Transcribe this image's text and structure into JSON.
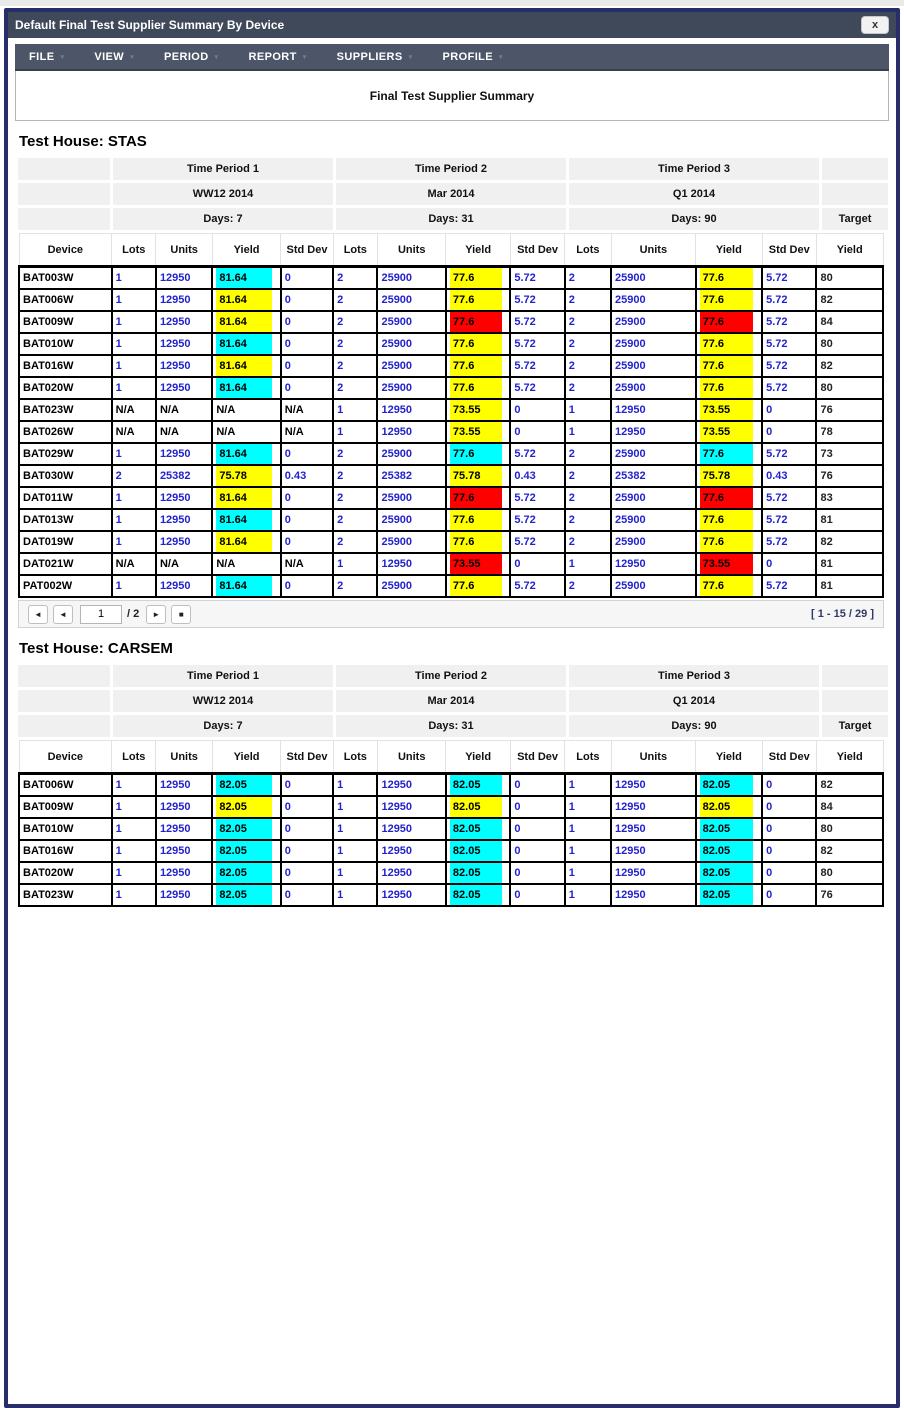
{
  "window": {
    "title": "Default Final Test Supplier Summary By Device",
    "close_label": "x"
  },
  "menu": {
    "items": [
      "FILE",
      "VIEW",
      "PERIOD",
      "REPORT",
      "SUPPLIERS",
      "PROFILE"
    ]
  },
  "report": {
    "title": "Final Test Supplier Summary"
  },
  "colors": {
    "cyan": "#00ffff",
    "yellow": "#ffff00",
    "red": "#ff0000",
    "number_text": "#2323cd",
    "menu_bar": "#4c5668",
    "title_bar": "#3f4959",
    "window_border": "#272e6a"
  },
  "table": {
    "columns": [
      "Device",
      "Lots",
      "Units",
      "Yield",
      "Std Dev",
      "Lots",
      "Units",
      "Yield",
      "Std Dev",
      "Lots",
      "Units",
      "Yield",
      "Std Dev",
      "Yield"
    ],
    "target_label": "Target"
  },
  "sections": [
    {
      "heading": "Test House: STAS",
      "periods": [
        {
          "name": "Time Period 1",
          "range": "WW12 2014",
          "days": "Days: 7"
        },
        {
          "name": "Time Period 2",
          "range": "Mar 2014",
          "days": "Days: 31"
        },
        {
          "name": "Time Period 3",
          "range": "Q1 2014",
          "days": "Days: 90"
        }
      ],
      "rows": [
        {
          "device": "BAT003W",
          "p": [
            [
              "1",
              "12950",
              "81.64",
              "cyan",
              "0"
            ],
            [
              "2",
              "25900",
              "77.6",
              "yellow",
              "5.72"
            ],
            [
              "2",
              "25900",
              "77.6",
              "yellow",
              "5.72"
            ]
          ],
          "target": "80"
        },
        {
          "device": "BAT006W",
          "p": [
            [
              "1",
              "12950",
              "81.64",
              "yellow",
              "0"
            ],
            [
              "2",
              "25900",
              "77.6",
              "yellow",
              "5.72"
            ],
            [
              "2",
              "25900",
              "77.6",
              "yellow",
              "5.72"
            ]
          ],
          "target": "82"
        },
        {
          "device": "BAT009W",
          "p": [
            [
              "1",
              "12950",
              "81.64",
              "yellow",
              "0"
            ],
            [
              "2",
              "25900",
              "77.6",
              "red",
              "5.72"
            ],
            [
              "2",
              "25900",
              "77.6",
              "red",
              "5.72"
            ]
          ],
          "target": "84"
        },
        {
          "device": "BAT010W",
          "p": [
            [
              "1",
              "12950",
              "81.64",
              "cyan",
              "0"
            ],
            [
              "2",
              "25900",
              "77.6",
              "yellow",
              "5.72"
            ],
            [
              "2",
              "25900",
              "77.6",
              "yellow",
              "5.72"
            ]
          ],
          "target": "80"
        },
        {
          "device": "BAT016W",
          "p": [
            [
              "1",
              "12950",
              "81.64",
              "yellow",
              "0"
            ],
            [
              "2",
              "25900",
              "77.6",
              "yellow",
              "5.72"
            ],
            [
              "2",
              "25900",
              "77.6",
              "yellow",
              "5.72"
            ]
          ],
          "target": "82"
        },
        {
          "device": "BAT020W",
          "p": [
            [
              "1",
              "12950",
              "81.64",
              "cyan",
              "0"
            ],
            [
              "2",
              "25900",
              "77.6",
              "yellow",
              "5.72"
            ],
            [
              "2",
              "25900",
              "77.6",
              "yellow",
              "5.72"
            ]
          ],
          "target": "80"
        },
        {
          "device": "BAT023W",
          "p": [
            [
              "N/A",
              "N/A",
              "N/A",
              null,
              "N/A"
            ],
            [
              "1",
              "12950",
              "73.55",
              "yellow",
              "0"
            ],
            [
              "1",
              "12950",
              "73.55",
              "yellow",
              "0"
            ]
          ],
          "target": "76"
        },
        {
          "device": "BAT026W",
          "p": [
            [
              "N/A",
              "N/A",
              "N/A",
              null,
              "N/A"
            ],
            [
              "1",
              "12950",
              "73.55",
              "yellow",
              "0"
            ],
            [
              "1",
              "12950",
              "73.55",
              "yellow",
              "0"
            ]
          ],
          "target": "78"
        },
        {
          "device": "BAT029W",
          "p": [
            [
              "1",
              "12950",
              "81.64",
              "cyan",
              "0"
            ],
            [
              "2",
              "25900",
              "77.6",
              "cyan",
              "5.72"
            ],
            [
              "2",
              "25900",
              "77.6",
              "cyan",
              "5.72"
            ]
          ],
          "target": "73"
        },
        {
          "device": "BAT030W",
          "p": [
            [
              "2",
              "25382",
              "75.78",
              "yellow",
              "0.43"
            ],
            [
              "2",
              "25382",
              "75.78",
              "yellow",
              "0.43"
            ],
            [
              "2",
              "25382",
              "75.78",
              "yellow",
              "0.43"
            ]
          ],
          "target": "76"
        },
        {
          "device": "DAT011W",
          "p": [
            [
              "1",
              "12950",
              "81.64",
              "yellow",
              "0"
            ],
            [
              "2",
              "25900",
              "77.6",
              "red",
              "5.72"
            ],
            [
              "2",
              "25900",
              "77.6",
              "red",
              "5.72"
            ]
          ],
          "target": "83"
        },
        {
          "device": "DAT013W",
          "p": [
            [
              "1",
              "12950",
              "81.64",
              "cyan",
              "0"
            ],
            [
              "2",
              "25900",
              "77.6",
              "yellow",
              "5.72"
            ],
            [
              "2",
              "25900",
              "77.6",
              "yellow",
              "5.72"
            ]
          ],
          "target": "81"
        },
        {
          "device": "DAT019W",
          "p": [
            [
              "1",
              "12950",
              "81.64",
              "yellow",
              "0"
            ],
            [
              "2",
              "25900",
              "77.6",
              "yellow",
              "5.72"
            ],
            [
              "2",
              "25900",
              "77.6",
              "yellow",
              "5.72"
            ]
          ],
          "target": "82"
        },
        {
          "device": "DAT021W",
          "p": [
            [
              "N/A",
              "N/A",
              "N/A",
              null,
              "N/A"
            ],
            [
              "1",
              "12950",
              "73.55",
              "red",
              "0"
            ],
            [
              "1",
              "12950",
              "73.55",
              "red",
              "0"
            ]
          ],
          "target": "81"
        },
        {
          "device": "PAT002W",
          "p": [
            [
              "1",
              "12950",
              "81.64",
              "cyan",
              "0"
            ],
            [
              "2",
              "25900",
              "77.6",
              "yellow",
              "5.72"
            ],
            [
              "2",
              "25900",
              "77.6",
              "yellow",
              "5.72"
            ]
          ],
          "target": "81"
        }
      ],
      "pagination": {
        "first": "◄",
        "prev": "◄",
        "page": "1",
        "of": "/ 2",
        "next": "►",
        "last": "■",
        "range": "[ 1 - 15 / 29 ]"
      }
    },
    {
      "heading": "Test House: CARSEM",
      "periods": [
        {
          "name": "Time Period 1",
          "range": "WW12 2014",
          "days": "Days: 7"
        },
        {
          "name": "Time Period 2",
          "range": "Mar 2014",
          "days": "Days: 31"
        },
        {
          "name": "Time Period 3",
          "range": "Q1 2014",
          "days": "Days: 90"
        }
      ],
      "rows": [
        {
          "device": "BAT006W",
          "p": [
            [
              "1",
              "12950",
              "82.05",
              "cyan",
              "0"
            ],
            [
              "1",
              "12950",
              "82.05",
              "cyan",
              "0"
            ],
            [
              "1",
              "12950",
              "82.05",
              "cyan",
              "0"
            ]
          ],
          "target": "82"
        },
        {
          "device": "BAT009W",
          "p": [
            [
              "1",
              "12950",
              "82.05",
              "yellow",
              "0"
            ],
            [
              "1",
              "12950",
              "82.05",
              "yellow",
              "0"
            ],
            [
              "1",
              "12950",
              "82.05",
              "yellow",
              "0"
            ]
          ],
          "target": "84"
        },
        {
          "device": "BAT010W",
          "p": [
            [
              "1",
              "12950",
              "82.05",
              "cyan",
              "0"
            ],
            [
              "1",
              "12950",
              "82.05",
              "cyan",
              "0"
            ],
            [
              "1",
              "12950",
              "82.05",
              "cyan",
              "0"
            ]
          ],
          "target": "80"
        },
        {
          "device": "BAT016W",
          "p": [
            [
              "1",
              "12950",
              "82.05",
              "cyan",
              "0"
            ],
            [
              "1",
              "12950",
              "82.05",
              "cyan",
              "0"
            ],
            [
              "1",
              "12950",
              "82.05",
              "cyan",
              "0"
            ]
          ],
          "target": "82"
        },
        {
          "device": "BAT020W",
          "p": [
            [
              "1",
              "12950",
              "82.05",
              "cyan",
              "0"
            ],
            [
              "1",
              "12950",
              "82.05",
              "cyan",
              "0"
            ],
            [
              "1",
              "12950",
              "82.05",
              "cyan",
              "0"
            ]
          ],
          "target": "80"
        },
        {
          "device": "BAT023W",
          "p": [
            [
              "1",
              "12950",
              "82.05",
              "cyan",
              "0"
            ],
            [
              "1",
              "12950",
              "82.05",
              "cyan",
              "0"
            ],
            [
              "1",
              "12950",
              "82.05",
              "cyan",
              "0"
            ]
          ],
          "target": "76"
        }
      ]
    }
  ]
}
